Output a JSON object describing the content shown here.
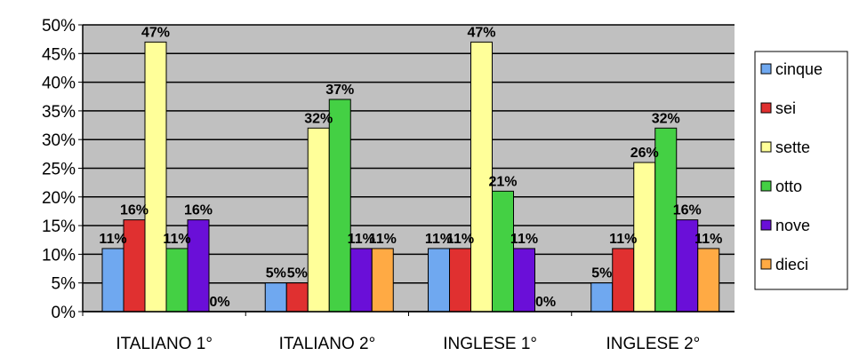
{
  "chart_data": {
    "type": "bar",
    "categories": [
      "ITALIANO 1°",
      "ITALIANO 2°",
      "INGLESE 1°",
      "INGLESE 2°"
    ],
    "series": [
      {
        "name": "cinque",
        "color": "#6fa8f0",
        "values": [
          11,
          5,
          11,
          5
        ]
      },
      {
        "name": "sei",
        "color": "#e03030",
        "values": [
          16,
          5,
          11,
          11
        ]
      },
      {
        "name": "sette",
        "color": "#ffff99",
        "values": [
          47,
          32,
          47,
          26
        ]
      },
      {
        "name": "otto",
        "color": "#44d044",
        "values": [
          11,
          37,
          21,
          32
        ]
      },
      {
        "name": "nove",
        "color": "#6a0fd8",
        "values": [
          16,
          11,
          11,
          16
        ]
      },
      {
        "name": "dieci",
        "color": "#ffaa44",
        "values": [
          0,
          11,
          0,
          11
        ]
      }
    ],
    "data_labels": [
      [
        "11%",
        "16%",
        "47%",
        "11%",
        "16%",
        "0%"
      ],
      [
        "5%",
        "5%",
        "32%",
        "37%",
        "11%",
        "11%"
      ],
      [
        "11%",
        "11%",
        "47%",
        "21%",
        "11%",
        "0%"
      ],
      [
        "5%",
        "11%",
        "26%",
        "32%",
        "16%",
        "11%"
      ]
    ],
    "yticks": [
      "0%",
      "5%",
      "10%",
      "15%",
      "20%",
      "25%",
      "30%",
      "35%",
      "40%",
      "45%",
      "50%"
    ],
    "ylim": [
      0,
      50
    ],
    "grid": true,
    "legend_position": "right",
    "plot_background": "#c0c0c0"
  }
}
